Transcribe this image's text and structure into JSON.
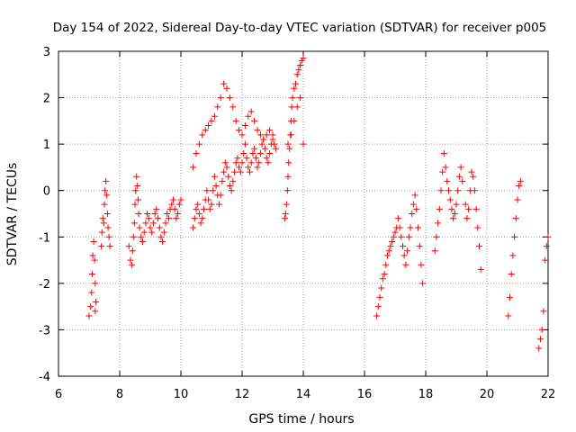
{
  "chart_data": {
    "type": "scatter",
    "title": "Day 154 of 2022, Sidereal Day-to-day VTEC variation (SDTVAR) for receiver p005",
    "xlabel": "GPS time / hours",
    "ylabel": "SDTVAR / TECUs",
    "xlim": [
      6,
      22
    ],
    "ylim": [
      -4,
      3
    ],
    "xticks": [
      "6",
      "8",
      "10",
      "12",
      "14",
      "16",
      "18",
      "20",
      "22"
    ],
    "yticks": [
      "3",
      "2",
      "1",
      "0",
      "-1",
      "-2",
      "-3",
      "-4"
    ],
    "grid": true,
    "marker": "+",
    "color": "#ff0000",
    "series": [
      {
        "name": "SDTVAR",
        "x": [
          7.0,
          7.05,
          7.08,
          7.1,
          7.12,
          7.15,
          7.18,
          7.2,
          7.2,
          7.22,
          7.4,
          7.42,
          7.45,
          7.48,
          7.5,
          7.52,
          7.55,
          7.58,
          7.6,
          7.62,
          7.65,
          7.68,
          8.3,
          8.35,
          8.4,
          8.42,
          8.45,
          8.48,
          8.5,
          8.52,
          8.55,
          8.58,
          8.6,
          8.62,
          8.65,
          8.7,
          8.75,
          8.8,
          8.85,
          8.9,
          8.95,
          9.0,
          9.05,
          9.1,
          9.15,
          9.2,
          9.25,
          9.3,
          9.35,
          9.4,
          9.45,
          9.5,
          9.55,
          9.6,
          9.65,
          9.7,
          9.75,
          9.8,
          9.85,
          9.9,
          9.95,
          10.0,
          10.4,
          10.45,
          10.5,
          10.55,
          10.6,
          10.65,
          10.7,
          10.75,
          10.8,
          10.85,
          10.9,
          10.95,
          11.0,
          11.05,
          11.1,
          11.15,
          11.2,
          11.25,
          11.3,
          11.35,
          11.4,
          11.45,
          11.5,
          11.55,
          11.6,
          11.65,
          11.7,
          11.75,
          11.8,
          11.85,
          11.9,
          11.95,
          12.0,
          12.05,
          12.1,
          12.15,
          12.2,
          12.25,
          12.3,
          12.35,
          12.4,
          12.45,
          12.5,
          12.55,
          12.6,
          12.65,
          12.7,
          12.75,
          12.8,
          12.85,
          12.9,
          12.95,
          13.0,
          13.05,
          13.1,
          13.4,
          13.42,
          13.45,
          13.48,
          13.5,
          13.52,
          13.55,
          13.58,
          13.6,
          13.62,
          13.65,
          13.7,
          13.75,
          13.8,
          13.85,
          13.9,
          13.95,
          14.0,
          10.4,
          10.5,
          10.6,
          10.7,
          10.8,
          10.9,
          11.0,
          11.1,
          11.2,
          11.3,
          11.4,
          11.5,
          11.6,
          11.7,
          11.8,
          11.9,
          12.0,
          12.1,
          12.2,
          12.3,
          12.4,
          12.5,
          12.6,
          12.7,
          12.8,
          12.9,
          13.0,
          13.5,
          13.6,
          13.7,
          13.8,
          13.9,
          14.0,
          16.4,
          16.45,
          16.5,
          16.55,
          16.6,
          16.65,
          16.7,
          16.75,
          16.8,
          16.85,
          16.9,
          16.95,
          17.0,
          17.05,
          17.1,
          17.15,
          17.2,
          17.25,
          17.3,
          17.35,
          17.4,
          17.45,
          17.5,
          17.55,
          17.6,
          17.65,
          17.7,
          17.75,
          17.8,
          17.85,
          17.9,
          18.3,
          18.35,
          18.4,
          18.45,
          18.5,
          18.55,
          18.6,
          18.65,
          18.7,
          18.75,
          18.8,
          18.85,
          18.9,
          18.95,
          19.0,
          19.05,
          19.1,
          19.15,
          19.2,
          19.3,
          19.35,
          19.4,
          19.45,
          19.5,
          19.55,
          19.6,
          19.65,
          19.7,
          19.75,
          19.8,
          20.7,
          20.75,
          20.8,
          20.85,
          20.9,
          20.95,
          21.0,
          21.05,
          21.1,
          21.7,
          21.75,
          21.8,
          21.85,
          21.9,
          21.95,
          22.0
        ],
        "y": [
          -2.7,
          -2.5,
          -2.2,
          -1.8,
          -1.4,
          -1.1,
          -1.5,
          -2.0,
          -2.6,
          -2.4,
          -1.2,
          -0.9,
          -0.6,
          -0.7,
          -0.3,
          0.0,
          0.2,
          -0.1,
          -0.5,
          -0.8,
          -1.0,
          -1.2,
          -1.2,
          -1.5,
          -1.6,
          -1.3,
          -1.0,
          -0.7,
          -0.3,
          0.0,
          0.3,
          0.1,
          -0.2,
          -0.5,
          -0.8,
          -1.0,
          -1.1,
          -0.9,
          -0.7,
          -0.5,
          -0.6,
          -0.8,
          -0.9,
          -0.7,
          -0.5,
          -0.4,
          -0.6,
          -0.8,
          -1.0,
          -1.1,
          -0.9,
          -0.7,
          -0.5,
          -0.6,
          -0.4,
          -0.3,
          -0.2,
          -0.4,
          -0.6,
          -0.5,
          -0.3,
          -0.2,
          -0.8,
          -0.6,
          -0.4,
          -0.3,
          -0.5,
          -0.7,
          -0.6,
          -0.4,
          -0.2,
          0.0,
          -0.2,
          -0.4,
          -0.3,
          0.0,
          0.3,
          0.1,
          -0.1,
          -0.3,
          -0.1,
          0.2,
          0.4,
          0.6,
          0.5,
          0.3,
          0.1,
          0.0,
          0.2,
          0.4,
          0.6,
          0.7,
          0.5,
          0.4,
          0.6,
          0.8,
          1.0,
          0.7,
          0.5,
          0.4,
          0.6,
          0.8,
          0.9,
          0.7,
          0.5,
          0.6,
          0.8,
          1.0,
          1.1,
          0.9,
          0.7,
          0.6,
          0.8,
          1.0,
          1.1,
          1.0,
          0.9,
          -0.6,
          -0.5,
          -0.3,
          0.0,
          0.3,
          0.6,
          0.9,
          1.2,
          1.5,
          1.8,
          2.0,
          2.2,
          2.3,
          2.5,
          2.6,
          2.7,
          2.8,
          2.85,
          0.5,
          0.8,
          1.0,
          1.2,
          1.3,
          1.4,
          1.5,
          1.6,
          1.8,
          2.0,
          2.3,
          2.2,
          2.0,
          1.8,
          1.5,
          1.3,
          1.2,
          1.4,
          1.6,
          1.7,
          1.5,
          1.3,
          1.2,
          1.1,
          1.2,
          1.3,
          1.2,
          1.0,
          1.2,
          1.5,
          1.8,
          2.0,
          1.0,
          -2.7,
          -2.5,
          -2.3,
          -2.1,
          -1.9,
          -1.8,
          -1.6,
          -1.4,
          -1.3,
          -1.2,
          -1.1,
          -1.0,
          -0.9,
          -0.8,
          -0.6,
          -0.8,
          -1.0,
          -1.2,
          -1.4,
          -1.6,
          -1.3,
          -1.0,
          -0.8,
          -0.5,
          -0.3,
          -0.1,
          -0.4,
          -0.8,
          -1.2,
          -1.6,
          -2.0,
          -1.3,
          -1.0,
          -0.7,
          -0.4,
          0.0,
          0.4,
          0.8,
          0.5,
          0.2,
          0.0,
          -0.2,
          -0.4,
          -0.6,
          -0.5,
          -0.3,
          0.0,
          0.3,
          0.5,
          0.2,
          -0.3,
          -0.6,
          -0.4,
          0.0,
          0.4,
          0.3,
          0.0,
          -0.4,
          -0.8,
          -1.2,
          -1.7,
          -2.7,
          -2.3,
          -1.8,
          -1.4,
          -1.0,
          -0.6,
          -0.2,
          0.1,
          0.2,
          -3.4,
          -3.2,
          -3.0,
          -2.6,
          -1.5,
          -1.2,
          -1.0
        ]
      }
    ]
  }
}
